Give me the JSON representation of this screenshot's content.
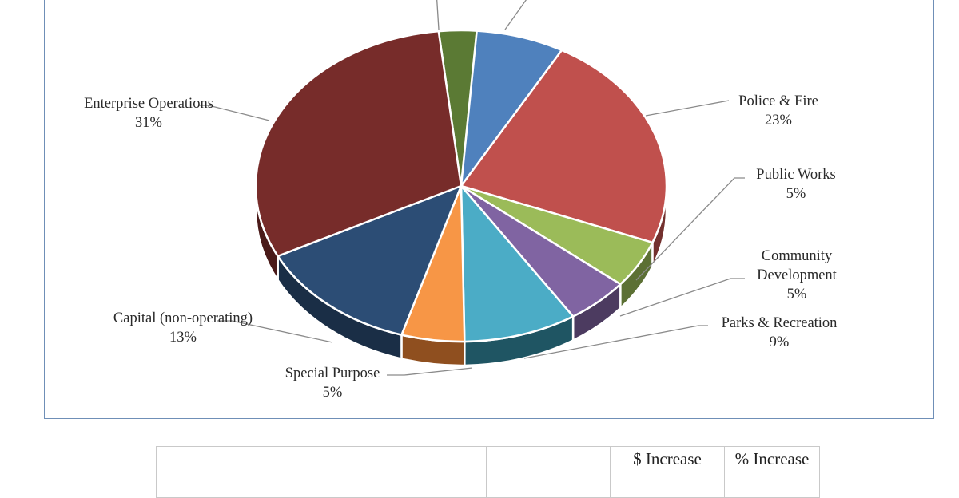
{
  "chart_data": {
    "type": "pie",
    "title": "",
    "slices": [
      {
        "label": "",
        "value": 3,
        "display": "",
        "color": "#5b7a34",
        "side_color": "#364a1f"
      },
      {
        "label": "",
        "value": 7,
        "display": "",
        "color": "#4f81bd",
        "side_color": "#2d4b70"
      },
      {
        "label": "Police & Fire",
        "value": 23,
        "display": "23%",
        "color": "#c0504d",
        "side_color": "#73302e"
      },
      {
        "label": "Public Works",
        "value": 5,
        "display": "5%",
        "color": "#9bbb59",
        "side_color": "#5c7034"
      },
      {
        "label": "Community Development",
        "value": 5,
        "display": "5%",
        "color": "#8064a2",
        "side_color": "#4c3b60"
      },
      {
        "label": "Parks & Recreation",
        "value": 9,
        "display": "9%",
        "color": "#4bacc6",
        "side_color": "#1f5563"
      },
      {
        "label": "Special Purpose",
        "value": 5,
        "display": "5%",
        "color": "#f79646",
        "side_color": "#8f4f1f"
      },
      {
        "label": "Capital (non-operating)",
        "value": 13,
        "display": "13%",
        "color": "#2c4d75",
        "side_color": "#1a2e46"
      },
      {
        "label": "Enterprise Operations",
        "value": 31,
        "display": "31%",
        "color": "#772c2a",
        "side_color": "#4a1a19"
      }
    ]
  },
  "table": {
    "header_row": [
      "",
      "",
      "",
      "$ Increase",
      "% Increase"
    ]
  }
}
